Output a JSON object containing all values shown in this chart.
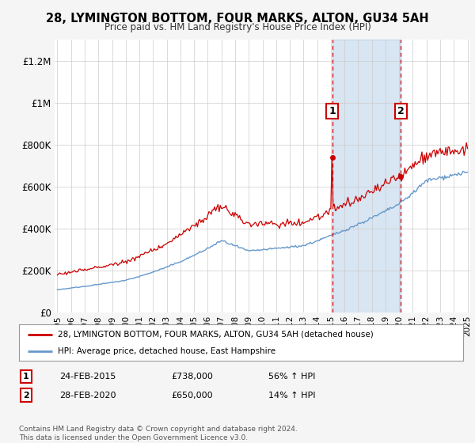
{
  "title": "28, LYMINGTON BOTTOM, FOUR MARKS, ALTON, GU34 5AH",
  "subtitle": "Price paid vs. HM Land Registry's House Price Index (HPI)",
  "ylim": [
    0,
    1300000
  ],
  "yticks": [
    0,
    200000,
    400000,
    600000,
    800000,
    1000000,
    1200000
  ],
  "ytick_labels": [
    "£0",
    "£200K",
    "£400K",
    "£600K",
    "£800K",
    "£1M",
    "£1.2M"
  ],
  "xticks": [
    1995,
    1996,
    1997,
    1998,
    1999,
    2000,
    2001,
    2002,
    2003,
    2004,
    2005,
    2006,
    2007,
    2008,
    2009,
    2010,
    2011,
    2012,
    2013,
    2014,
    2015,
    2016,
    2017,
    2018,
    2019,
    2020,
    2021,
    2022,
    2023,
    2024,
    2025
  ],
  "sale1_x": 2015.12,
  "sale1_y": 738000,
  "sale2_x": 2020.12,
  "sale2_y": 650000,
  "legend_line1": "28, LYMINGTON BOTTOM, FOUR MARKS, ALTON, GU34 5AH (detached house)",
  "legend_line2": "HPI: Average price, detached house, East Hampshire",
  "table_row1": [
    "1",
    "24-FEB-2015",
    "£738,000",
    "56% ↑ HPI"
  ],
  "table_row2": [
    "2",
    "28-FEB-2020",
    "£650,000",
    "14% ↑ HPI"
  ],
  "footer": "Contains HM Land Registry data © Crown copyright and database right 2024.\nThis data is licensed under the Open Government Licence v3.0.",
  "line_color_red": "#cc0000",
  "line_color_blue": "#6699cc",
  "bg_color": "#f5f5f5",
  "plot_bg": "#ffffff",
  "dashed_line_color": "#cc0000",
  "shade_between_sales_color": "#ddeeff"
}
